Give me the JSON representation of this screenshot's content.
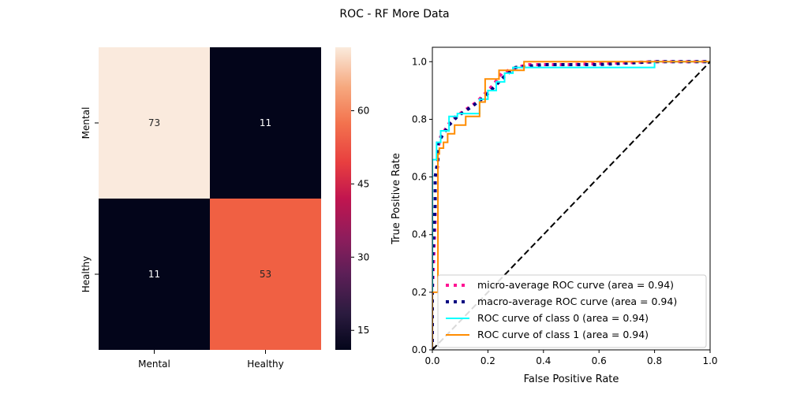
{
  "figure": {
    "title": "ROC - RF More Data"
  },
  "chart_data": [
    {
      "type": "heatmap",
      "rows": [
        "Mental",
        "Healthy"
      ],
      "cols": [
        "Mental",
        "Healthy"
      ],
      "values": [
        [
          73,
          11
        ],
        [
          11,
          53
        ]
      ],
      "colorbar": {
        "ticks": [
          15,
          30,
          45,
          60
        ],
        "range": [
          11,
          73
        ]
      },
      "cell_text_colors": [
        [
          "#262626",
          "#ffffff"
        ],
        [
          "#ffffff",
          "#262626"
        ]
      ],
      "cell_colors": [
        [
          "#faeadd",
          "#03051a"
        ],
        [
          "#03051a",
          "#f06043"
        ]
      ]
    },
    {
      "type": "line",
      "title": "",
      "xlabel": "False Positive Rate",
      "ylabel": "True Positive Rate",
      "xlim": [
        0.0,
        1.0
      ],
      "ylim": [
        0.0,
        1.05
      ],
      "xticks": [
        "0.0",
        "0.2",
        "0.4",
        "0.6",
        "0.8",
        "1.0"
      ],
      "yticks": [
        "0.0",
        "0.2",
        "0.4",
        "0.6",
        "0.8",
        "1.0"
      ],
      "legend_position": "lower-right",
      "series": [
        {
          "name": "micro-average ROC curve (area = 0.94)",
          "color": "#ff1493",
          "style": "dotted",
          "x": [
            0,
            0,
            0.01,
            0.01,
            0.02,
            0.02,
            0.03,
            0.05,
            0.07,
            0.1,
            0.13,
            0.16,
            0.19,
            0.22,
            0.25,
            0.3,
            0.35,
            0.5,
            0.8,
            1.0
          ],
          "y": [
            0,
            0.2,
            0.45,
            0.6,
            0.64,
            0.7,
            0.74,
            0.77,
            0.8,
            0.82,
            0.84,
            0.86,
            0.89,
            0.92,
            0.96,
            0.98,
            0.99,
            0.99,
            1.0,
            1.0
          ]
        },
        {
          "name": "macro-average ROC curve (area = 0.94)",
          "color": "#000080",
          "style": "dotted",
          "x": [
            0,
            0,
            0.01,
            0.01,
            0.02,
            0.02,
            0.04,
            0.06,
            0.09,
            0.12,
            0.15,
            0.19,
            0.22,
            0.26,
            0.3,
            0.4,
            0.6,
            0.8,
            1.0
          ],
          "y": [
            0,
            0.3,
            0.5,
            0.6,
            0.66,
            0.72,
            0.75,
            0.78,
            0.81,
            0.83,
            0.85,
            0.88,
            0.91,
            0.95,
            0.98,
            0.99,
            0.99,
            1.0,
            1.0
          ]
        },
        {
          "name": "ROC curve of class 0 (area = 0.94)",
          "color": "#00ffff",
          "style": "solid",
          "x": [
            0,
            0,
            0.015,
            0.015,
            0.03,
            0.03,
            0.06,
            0.06,
            0.09,
            0.09,
            0.17,
            0.17,
            0.2,
            0.2,
            0.23,
            0.23,
            0.26,
            0.26,
            0.29,
            0.29,
            0.8,
            0.8,
            1.0
          ],
          "y": [
            0,
            0.66,
            0.66,
            0.72,
            0.72,
            0.76,
            0.76,
            0.81,
            0.81,
            0.82,
            0.82,
            0.87,
            0.87,
            0.9,
            0.9,
            0.93,
            0.93,
            0.96,
            0.96,
            0.98,
            0.98,
            1.0,
            1.0
          ]
        },
        {
          "name": "ROC curve of class 1 (area = 0.94)",
          "color": "#ff8c00",
          "style": "solid",
          "x": [
            0,
            0,
            0.02,
            0.02,
            0.025,
            0.025,
            0.04,
            0.04,
            0.055,
            0.055,
            0.08,
            0.08,
            0.12,
            0.12,
            0.17,
            0.17,
            0.19,
            0.19,
            0.24,
            0.24,
            0.28,
            0.28,
            0.33,
            0.33,
            1.0
          ],
          "y": [
            0,
            0.2,
            0.2,
            0.68,
            0.68,
            0.7,
            0.7,
            0.72,
            0.72,
            0.75,
            0.75,
            0.78,
            0.78,
            0.81,
            0.81,
            0.86,
            0.86,
            0.94,
            0.94,
            0.97,
            0.97,
            0.97,
            0.97,
            1.0,
            1.0
          ]
        },
        {
          "name": "",
          "color": "#000000",
          "style": "dashed",
          "x": [
            0,
            1
          ],
          "y": [
            0,
            1
          ]
        }
      ]
    }
  ]
}
